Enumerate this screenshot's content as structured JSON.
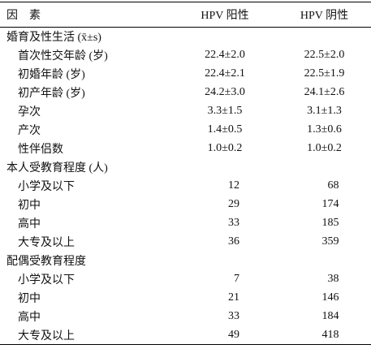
{
  "table": {
    "header": [
      "因　素",
      "HPV 阳性",
      "HPV 阴性"
    ],
    "sections": [
      {
        "title": "婚育及性生活 (x̄±s)",
        "rows": [
          [
            "首次性交年龄 (岁)",
            "22.4±2.0",
            "22.5±2.0"
          ],
          [
            "初婚年龄 (岁)",
            "22.4±2.1",
            "22.5±1.9"
          ],
          [
            "初产年龄 (岁)",
            "24.2±3.0",
            "24.1±2.6"
          ],
          [
            "孕次",
            "3.3±1.5",
            "3.1±1.3"
          ],
          [
            "产次",
            "1.4±0.5",
            "1.3±0.6"
          ],
          [
            "性伴侣数",
            "1.0±0.2",
            "1.0±0.2"
          ]
        ]
      },
      {
        "title": "本人受教育程度 (人)",
        "rows": [
          [
            "小学及以下",
            12,
            68
          ],
          [
            "初中",
            29,
            174
          ],
          [
            "高中",
            33,
            185
          ],
          [
            "大专及以上",
            36,
            359
          ]
        ]
      },
      {
        "title": "配偶受教育程度",
        "rows": [
          [
            "小学及以下",
            7,
            38
          ],
          [
            "初中",
            21,
            146
          ],
          [
            "高中",
            33,
            184
          ],
          [
            "大专及以上",
            49,
            418
          ]
        ]
      }
    ]
  }
}
